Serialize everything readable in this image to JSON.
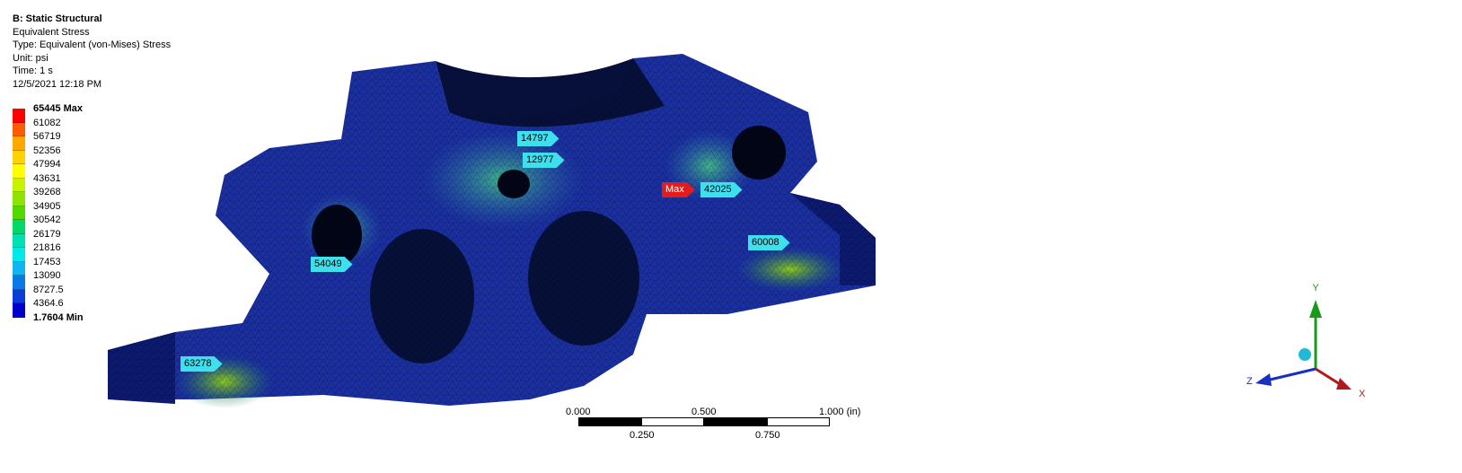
{
  "header": {
    "title": "B: Static Structural",
    "result": "Equivalent Stress",
    "type": "Type: Equivalent (von-Mises) Stress",
    "unit": "Unit: psi",
    "time": "Time: 1 s",
    "date": "12/5/2021 12:18 PM"
  },
  "legend": {
    "max_label": "65445 Max",
    "min_label": "1.7604 Min",
    "labels": [
      "61082",
      "56719",
      "52356",
      "47994",
      "43631",
      "39268",
      "34905",
      "30542",
      "26179",
      "21816",
      "17453",
      "13090",
      "8727.5",
      "4364.6"
    ],
    "colors": [
      "#ff0000",
      "#ff5b00",
      "#ffa800",
      "#ffd200",
      "#ffff00",
      "#c6f400",
      "#8ee400",
      "#52d800",
      "#00d86c",
      "#00e0b4",
      "#00e8e8",
      "#0fb4f0",
      "#0a78e8",
      "#0a3cd8",
      "#0000cc"
    ]
  },
  "probes": {
    "p1": "63278",
    "p2": "54049",
    "p3": "14797",
    "p4": "12977",
    "p5": "Max",
    "p6": "42025",
    "p7": "60008"
  },
  "scale": {
    "l0": "0.000",
    "l1": "0.500",
    "l2": "1.000 (in)",
    "l3": "0.250",
    "l4": "0.750"
  },
  "triad": {
    "x": "X",
    "y": "Y",
    "z": "Z"
  },
  "colors": {
    "probe": "#3ee0ee",
    "max_probe": "#e51a1a",
    "model_base": "#1a2fa0"
  }
}
